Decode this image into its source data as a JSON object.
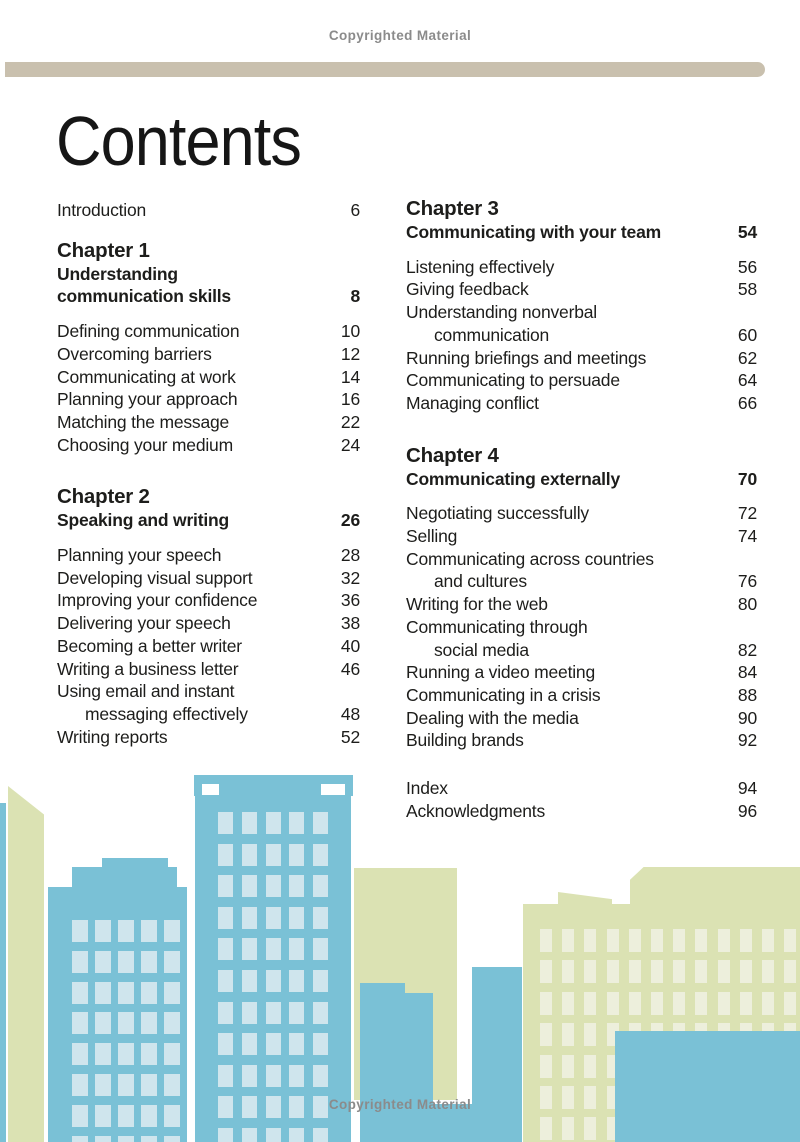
{
  "page": {
    "copyright_top": "Copyrighted Material",
    "copyright_bottom": "Copyrighted Material",
    "title": "Contents"
  },
  "colors": {
    "accent_bar": "#c9c0ae",
    "text": "#1d1d1b",
    "copyright_gray": "#8b8b8b",
    "building_blue": "#7ac1d6",
    "building_blue_window": "#cfe5ed",
    "building_green": "#dbe2b3",
    "building_green_window": "#edefdc"
  },
  "toc": {
    "left": [
      {
        "type": "entry",
        "lines": [
          "Introduction"
        ],
        "page": "6"
      },
      {
        "type": "chapter",
        "title": "Chapter 1",
        "subtitle_lines": [
          "Understanding",
          "communication skills"
        ],
        "page": "8"
      },
      {
        "type": "entry",
        "lines": [
          "Defining communication"
        ],
        "page": "10"
      },
      {
        "type": "entry",
        "lines": [
          "Overcoming barriers"
        ],
        "page": "12"
      },
      {
        "type": "entry",
        "lines": [
          "Communicating at work"
        ],
        "page": "14"
      },
      {
        "type": "entry",
        "lines": [
          "Planning your approach"
        ],
        "page": "16"
      },
      {
        "type": "entry",
        "lines": [
          "Matching the message"
        ],
        "page": "22"
      },
      {
        "type": "entry",
        "lines": [
          "Choosing your medium"
        ],
        "page": "24"
      },
      {
        "type": "chapter",
        "big_gap": true,
        "title": "Chapter 2",
        "subtitle_lines": [
          "Speaking and writing"
        ],
        "page": "26"
      },
      {
        "type": "entry",
        "lines": [
          "Planning your speech"
        ],
        "page": "28"
      },
      {
        "type": "entry",
        "lines": [
          "Developing visual support"
        ],
        "page": "32"
      },
      {
        "type": "entry",
        "lines": [
          "Improving your confidence"
        ],
        "page": "36"
      },
      {
        "type": "entry",
        "lines": [
          "Delivering your speech"
        ],
        "page": "38"
      },
      {
        "type": "entry",
        "lines": [
          "Becoming a better writer"
        ],
        "page": "40"
      },
      {
        "type": "entry",
        "lines": [
          "Writing a business letter"
        ],
        "page": "46"
      },
      {
        "type": "entry",
        "lines": [
          "Using email and instant",
          "messaging effectively"
        ],
        "page": "48"
      },
      {
        "type": "entry",
        "lines": [
          "Writing reports"
        ],
        "page": "52"
      }
    ],
    "right": [
      {
        "type": "chapter",
        "title": "Chapter 3",
        "subtitle_lines": [
          "Communicating with your team"
        ],
        "page": "54"
      },
      {
        "type": "entry",
        "lines": [
          "Listening effectively"
        ],
        "page": "56"
      },
      {
        "type": "entry",
        "lines": [
          "Giving feedback"
        ],
        "page": "58"
      },
      {
        "type": "entry",
        "lines": [
          "Understanding nonverbal",
          "communication"
        ],
        "page": "60"
      },
      {
        "type": "entry",
        "lines": [
          "Running briefings and meetings"
        ],
        "page": "62"
      },
      {
        "type": "entry",
        "lines": [
          "Communicating to persuade"
        ],
        "page": "64"
      },
      {
        "type": "entry",
        "lines": [
          "Managing conflict"
        ],
        "page": "66"
      },
      {
        "type": "chapter",
        "big_gap": true,
        "title": "Chapter 4",
        "subtitle_lines": [
          "Communicating externally"
        ],
        "page": "70"
      },
      {
        "type": "entry",
        "lines": [
          "Negotiating successfully"
        ],
        "page": "72"
      },
      {
        "type": "entry",
        "lines": [
          "Selling"
        ],
        "page": "74"
      },
      {
        "type": "entry",
        "lines": [
          "Communicating across countries",
          "and cultures"
        ],
        "page": "76"
      },
      {
        "type": "entry",
        "lines": [
          "Writing for the web"
        ],
        "page": "80"
      },
      {
        "type": "entry",
        "lines": [
          "Communicating through",
          "social media"
        ],
        "page": "82"
      },
      {
        "type": "entry",
        "lines": [
          "Running a video meeting"
        ],
        "page": "84"
      },
      {
        "type": "entry",
        "lines": [
          "Communicating in a crisis"
        ],
        "page": "88"
      },
      {
        "type": "entry",
        "lines": [
          "Dealing with the media"
        ],
        "page": "90"
      },
      {
        "type": "entry",
        "lines": [
          "Building brands"
        ],
        "page": "92"
      },
      {
        "type": "entry",
        "big_gap": true,
        "lines": [
          "Index"
        ],
        "page": "94"
      },
      {
        "type": "entry",
        "lines": [
          "Acknowledgments"
        ],
        "page": "96"
      }
    ]
  }
}
